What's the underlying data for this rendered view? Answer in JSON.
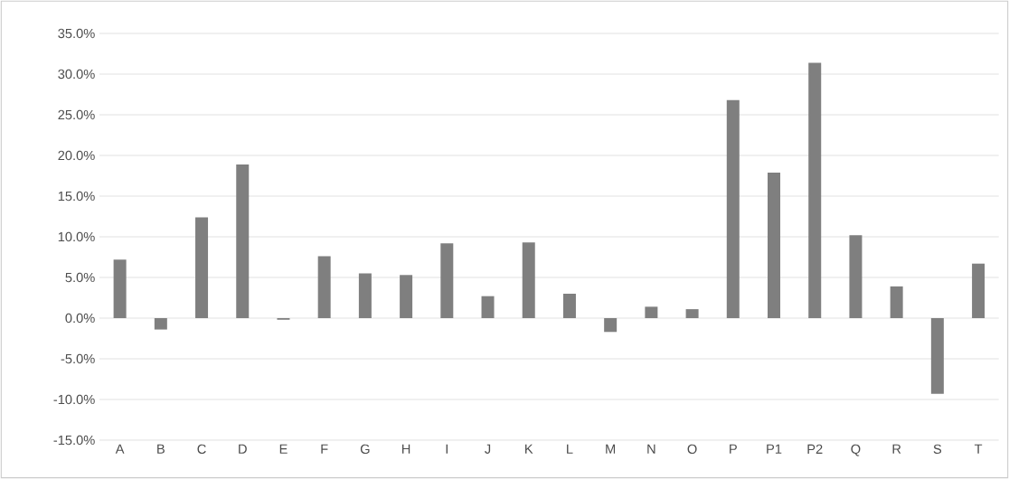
{
  "chart_data": {
    "type": "bar",
    "categories": [
      "A",
      "B",
      "C",
      "D",
      "E",
      "F",
      "G",
      "H",
      "I",
      "J",
      "K",
      "L",
      "M",
      "N",
      "O",
      "P",
      "P1",
      "P2",
      "Q",
      "R",
      "S",
      "T"
    ],
    "values": [
      7.2,
      -1.4,
      12.4,
      18.9,
      -0.2,
      7.6,
      5.5,
      5.3,
      9.2,
      2.7,
      9.3,
      3.0,
      -1.7,
      1.4,
      1.1,
      26.8,
      17.9,
      31.4,
      10.2,
      3.9,
      -9.3,
      6.7
    ],
    "color": "#7f7f7f",
    "ylim": [
      -15,
      35
    ],
    "yticks": [
      {
        "value": -15,
        "label": "-15.0%"
      },
      {
        "value": -10,
        "label": "-10.0%"
      },
      {
        "value": -5,
        "label": "-5.0%"
      },
      {
        "value": 0,
        "label": "0.0%"
      },
      {
        "value": 5,
        "label": "5.0%"
      },
      {
        "value": 10,
        "label": "10.0%"
      },
      {
        "value": 15,
        "label": "15.0%"
      },
      {
        "value": 20,
        "label": "20.0%"
      },
      {
        "value": 25,
        "label": "25.0%"
      },
      {
        "value": 30,
        "label": "30.0%"
      },
      {
        "value": 35,
        "label": "35.0%"
      }
    ],
    "grid": "y"
  }
}
